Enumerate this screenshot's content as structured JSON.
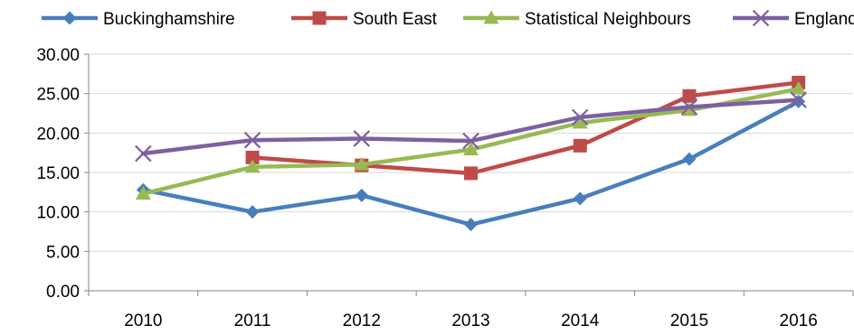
{
  "chart_data": {
    "type": "line",
    "x": [
      "2010",
      "2011",
      "2012",
      "2013",
      "2014",
      "2015",
      "2016"
    ],
    "ylim": [
      0,
      30
    ],
    "yticks": [
      "0.00",
      "5.00",
      "10.00",
      "15.00",
      "20.00",
      "25.00",
      "30.00"
    ],
    "grid": "horizontal",
    "legend_position": "top",
    "title": "",
    "xlabel": "",
    "ylabel": "",
    "series": [
      {
        "name": "Buckinghamshire",
        "color": "#4a7ebb",
        "marker": "diamond",
        "values": [
          12.8,
          10.0,
          12.1,
          8.4,
          11.7,
          16.7,
          24.0
        ]
      },
      {
        "name": "South East",
        "color": "#be4b48",
        "marker": "square",
        "values": [
          null,
          16.9,
          15.9,
          14.9,
          18.4,
          24.7,
          26.4
        ]
      },
      {
        "name": "Statistical Neighbours",
        "color": "#98b954",
        "marker": "triangle",
        "values": [
          12.3,
          15.7,
          16.0,
          17.9,
          21.3,
          22.9,
          25.6
        ]
      },
      {
        "name": "England",
        "color": "#7d60a0",
        "marker": "x",
        "values": [
          17.4,
          19.1,
          19.3,
          19.0,
          22.0,
          23.3,
          24.2
        ]
      }
    ]
  }
}
